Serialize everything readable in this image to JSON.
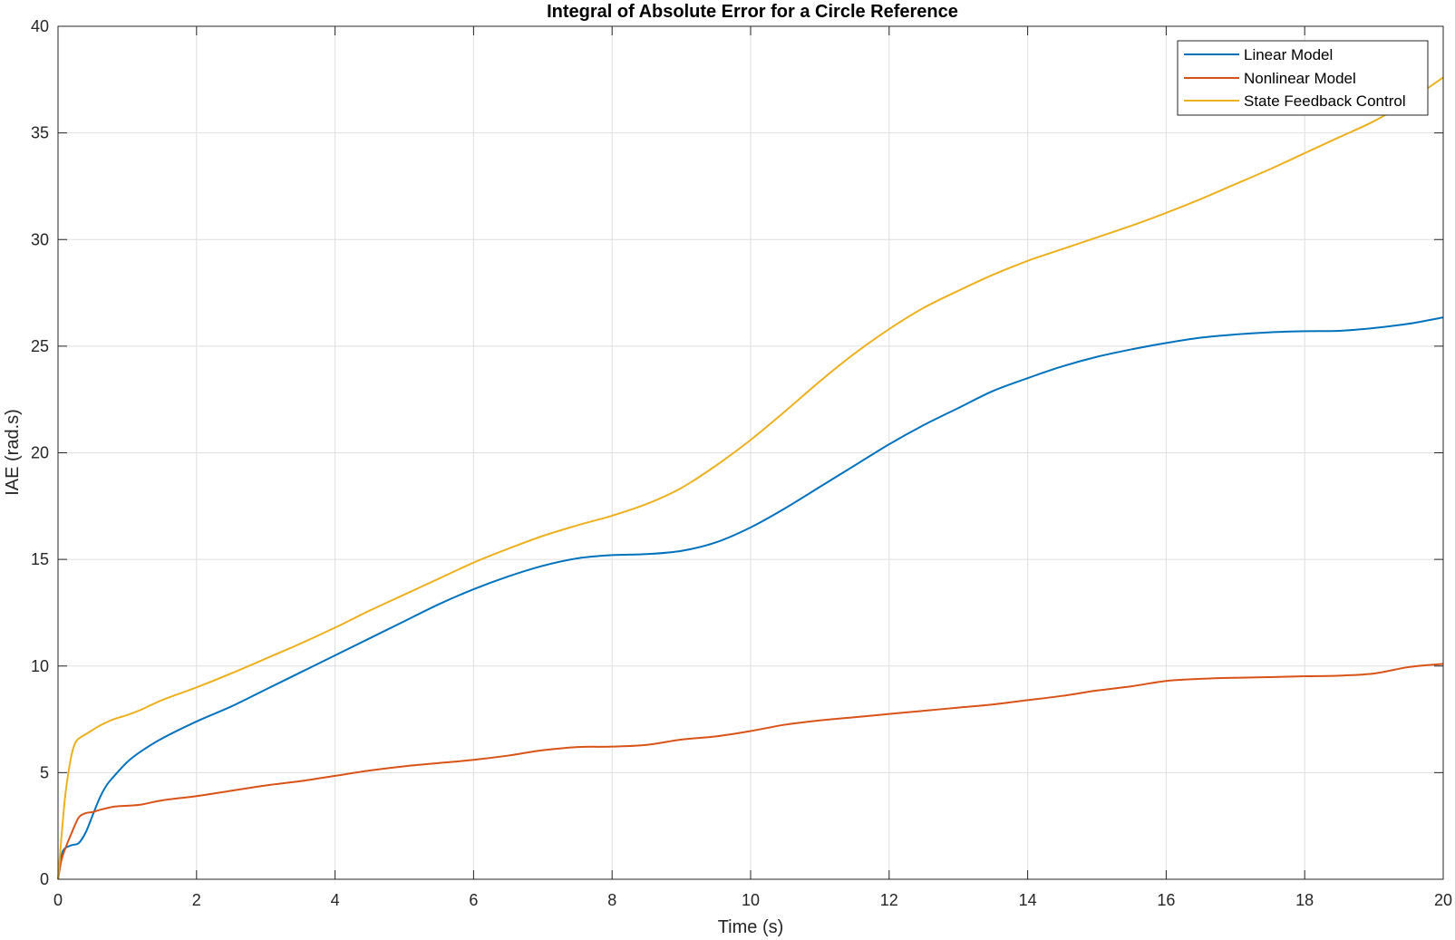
{
  "chart_data": {
    "type": "line",
    "title": "Integral of Absolute Error for a Circle Reference",
    "xlabel": "Time (s)",
    "ylabel": "IAE (rad.s)",
    "xlim": [
      0,
      20
    ],
    "ylim": [
      0,
      40
    ],
    "xticks": [
      0,
      2,
      4,
      6,
      8,
      10,
      12,
      14,
      16,
      18,
      20
    ],
    "yticks": [
      0,
      5,
      10,
      15,
      20,
      25,
      30,
      35,
      40
    ],
    "xtick_labels": [
      "0",
      "2",
      "4",
      "6",
      "8",
      "10",
      "12",
      "14",
      "16",
      "18",
      "20"
    ],
    "ytick_labels": [
      "0",
      "5",
      "10",
      "15",
      "20",
      "25",
      "30",
      "35",
      "40"
    ],
    "grid": true,
    "legend_position": "top-right",
    "series": [
      {
        "name": "Linear Model",
        "color": "#0072BD",
        "x": [
          0,
          0.05,
          0.1,
          0.2,
          0.3,
          0.4,
          0.5,
          0.6,
          0.7,
          0.8,
          1.0,
          1.2,
          1.5,
          2.0,
          2.5,
          3.0,
          3.5,
          4.0,
          4.5,
          5.0,
          5.5,
          6.0,
          6.5,
          7.0,
          7.5,
          8.0,
          8.5,
          9.0,
          9.5,
          10.0,
          10.5,
          11.0,
          11.5,
          12.0,
          12.5,
          13.0,
          13.5,
          14.0,
          14.5,
          15.0,
          15.5,
          16.0,
          16.5,
          17.0,
          17.5,
          18.0,
          18.5,
          19.0,
          19.5,
          20.0
        ],
        "y": [
          0,
          1.1,
          1.45,
          1.6,
          1.7,
          2.2,
          3.0,
          3.8,
          4.4,
          4.8,
          5.5,
          6.0,
          6.6,
          7.4,
          8.1,
          8.9,
          9.7,
          10.5,
          11.3,
          12.1,
          12.9,
          13.6,
          14.2,
          14.7,
          15.05,
          15.2,
          15.25,
          15.4,
          15.8,
          16.5,
          17.4,
          18.4,
          19.4,
          20.4,
          21.3,
          22.1,
          22.9,
          23.5,
          24.05,
          24.5,
          24.85,
          25.15,
          25.4,
          25.55,
          25.65,
          25.7,
          25.72,
          25.85,
          26.05,
          26.35
        ]
      },
      {
        "name": "Nonlinear Model",
        "color": "#D95319",
        "x": [
          0,
          0.05,
          0.1,
          0.2,
          0.3,
          0.4,
          0.5,
          0.6,
          0.8,
          1.0,
          1.2,
          1.5,
          2.0,
          2.5,
          3.0,
          3.5,
          4.0,
          4.5,
          5.0,
          5.5,
          6.0,
          6.5,
          7.0,
          7.5,
          8.0,
          8.5,
          9.0,
          9.5,
          10.0,
          10.5,
          11.0,
          11.5,
          12.0,
          12.5,
          13.0,
          13.5,
          14.0,
          14.5,
          15.0,
          15.5,
          16.0,
          16.5,
          17.0,
          17.5,
          18.0,
          18.5,
          19.0,
          19.5,
          20.0
        ],
        "y": [
          0,
          0.9,
          1.4,
          2.2,
          2.9,
          3.1,
          3.15,
          3.25,
          3.4,
          3.45,
          3.5,
          3.7,
          3.9,
          4.15,
          4.4,
          4.6,
          4.85,
          5.1,
          5.3,
          5.45,
          5.6,
          5.8,
          6.05,
          6.2,
          6.22,
          6.3,
          6.55,
          6.7,
          6.95,
          7.25,
          7.45,
          7.6,
          7.75,
          7.9,
          8.05,
          8.2,
          8.4,
          8.6,
          8.85,
          9.05,
          9.3,
          9.4,
          9.45,
          9.48,
          9.52,
          9.55,
          9.65,
          9.95,
          10.1
        ]
      },
      {
        "name": "State Feedback Control",
        "color": "#EDB120",
        "x": [
          0,
          0.05,
          0.1,
          0.15,
          0.2,
          0.25,
          0.3,
          0.4,
          0.5,
          0.6,
          0.8,
          1.0,
          1.2,
          1.5,
          2.0,
          2.5,
          3.0,
          3.5,
          4.0,
          4.5,
          5.0,
          5.5,
          6.0,
          6.5,
          7.0,
          7.5,
          8.0,
          8.5,
          9.0,
          9.5,
          10.0,
          10.5,
          11.0,
          11.5,
          12.0,
          12.5,
          13.0,
          13.5,
          14.0,
          14.5,
          15.0,
          15.5,
          16.0,
          16.5,
          17.0,
          17.5,
          18.0,
          18.5,
          19.0,
          19.5,
          20.0
        ],
        "y": [
          0,
          2.0,
          3.8,
          5.0,
          5.9,
          6.4,
          6.6,
          6.8,
          7.0,
          7.2,
          7.5,
          7.7,
          7.95,
          8.4,
          9.0,
          9.65,
          10.35,
          11.05,
          11.8,
          12.6,
          13.35,
          14.1,
          14.85,
          15.5,
          16.1,
          16.6,
          17.05,
          17.6,
          18.35,
          19.4,
          20.6,
          21.95,
          23.35,
          24.65,
          25.8,
          26.8,
          27.6,
          28.35,
          29.0,
          29.55,
          30.1,
          30.65,
          31.25,
          31.9,
          32.6,
          33.3,
          34.05,
          34.8,
          35.55,
          36.5,
          37.6
        ]
      }
    ]
  }
}
